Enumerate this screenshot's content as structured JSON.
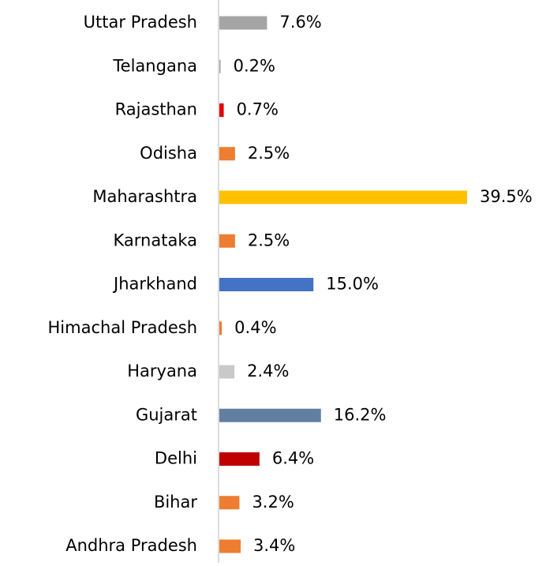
{
  "chart_data": {
    "type": "bar",
    "orientation": "horizontal",
    "categories": [
      "Uttar Pradesh",
      "Telangana",
      "Rajasthan",
      "Odisha",
      "Maharashtra",
      "Karnataka",
      "Jharkhand",
      "Himachal Pradesh",
      "Haryana",
      "Gujarat",
      "Delhi",
      "Bihar",
      "Andhra Pradesh"
    ],
    "values": [
      7.6,
      0.2,
      0.7,
      2.5,
      39.5,
      2.5,
      15.0,
      0.4,
      2.4,
      16.2,
      6.4,
      3.2,
      3.4
    ],
    "value_labels": [
      "7.6%",
      "0.2%",
      "0.7%",
      "2.5%",
      "39.5%",
      "2.5%",
      "15.0%",
      "0.4%",
      "2.4%",
      "16.2%",
      "6.4%",
      "3.2%",
      "3.4%"
    ],
    "colors": [
      "#a5a5a5",
      "#a5a5a5",
      "#e00000",
      "#ed7d31",
      "#ffc000",
      "#ed7d31",
      "#4472c4",
      "#ed7d31",
      "#c9c9c9",
      "#637fa0",
      "#c00000",
      "#ed7d31",
      "#ed7d31"
    ]
  }
}
